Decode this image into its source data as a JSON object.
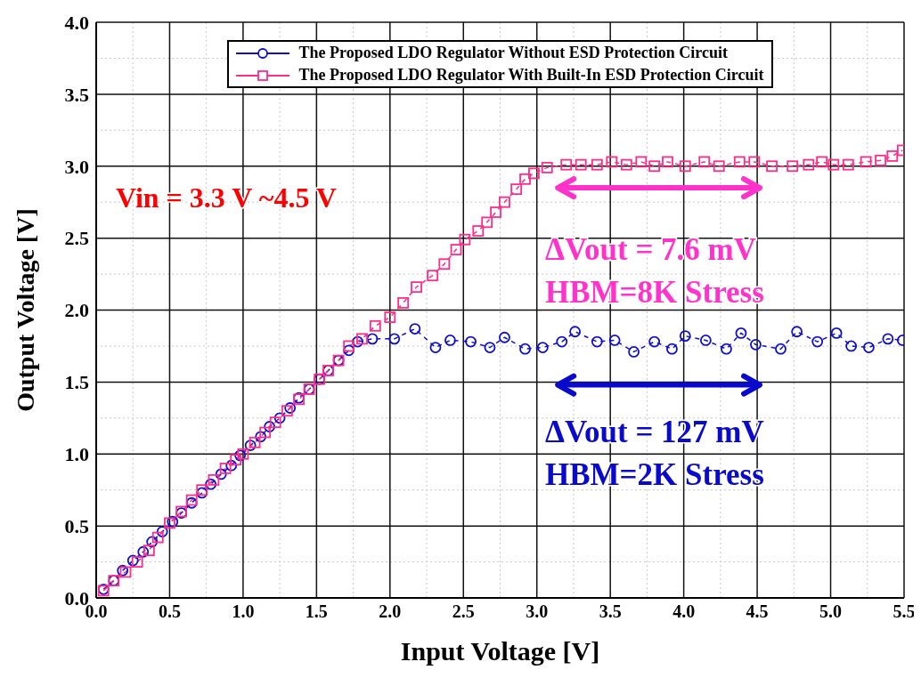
{
  "chart_data": {
    "type": "line",
    "xlabel": "Input Voltage [V]",
    "ylabel": "Output Voltage [V]",
    "xlim": [
      0,
      5.5
    ],
    "ylim": [
      0,
      4
    ],
    "xticks": [
      {
        "value": 0,
        "label": "0.0"
      },
      {
        "value": 0.5,
        "label": "0.5"
      },
      {
        "value": 1,
        "label": "1.0"
      },
      {
        "value": 1.5,
        "label": "1.5"
      },
      {
        "value": 2,
        "label": "2.0"
      },
      {
        "value": 2.5,
        "label": "2.5"
      },
      {
        "value": 3,
        "label": "3.0"
      },
      {
        "value": 3.5,
        "label": "3.5"
      },
      {
        "value": 4,
        "label": "4.0"
      },
      {
        "value": 4.5,
        "label": "4.5"
      },
      {
        "value": 5,
        "label": "5.0"
      },
      {
        "value": 5.5,
        "label": "5.5"
      }
    ],
    "yticks": [
      {
        "value": 0,
        "label": "0.0"
      },
      {
        "value": 0.5,
        "label": "0.5"
      },
      {
        "value": 1,
        "label": "1.0"
      },
      {
        "value": 1.5,
        "label": "1.5"
      },
      {
        "value": 2,
        "label": "2.0"
      },
      {
        "value": 2.5,
        "label": "2.5"
      },
      {
        "value": 3,
        "label": "3.0"
      },
      {
        "value": 3.5,
        "label": "3.5"
      },
      {
        "value": 4,
        "label": "4.0"
      }
    ],
    "grid": true,
    "legend": "top",
    "line_style": "dashed",
    "annotations": [
      "Vin = 3.3 V ~4.5 V",
      "ΔVout = 7.6 mV",
      "HBM=8K Stress",
      "ΔVout = 127 mV",
      "HBM=2K Stress"
    ],
    "series": [
      {
        "name": "The Proposed LDO Regulator Without ESD Protection Circuit",
        "color": "#1010cc",
        "marker": "circle",
        "x": [
          0.05,
          0.12,
          0.18,
          0.25,
          0.32,
          0.38,
          0.45,
          0.52,
          0.58,
          0.65,
          0.72,
          0.78,
          0.85,
          0.92,
          0.98,
          1.05,
          1.12,
          1.18,
          1.25,
          1.32,
          1.38,
          1.45,
          1.52,
          1.58,
          1.65,
          1.72,
          1.78,
          1.88,
          2.03,
          2.17,
          2.31,
          2.41,
          2.55,
          2.68,
          2.78,
          2.92,
          3.04,
          3.17,
          3.26,
          3.41,
          3.53,
          3.66,
          3.8,
          3.92,
          4.01,
          4.15,
          4.29,
          4.39,
          4.49,
          4.66,
          4.77,
          4.91,
          5.04,
          5.14,
          5.26,
          5.39,
          5.49
        ],
        "values": [
          0.06,
          0.12,
          0.19,
          0.26,
          0.32,
          0.39,
          0.46,
          0.53,
          0.59,
          0.66,
          0.73,
          0.79,
          0.86,
          0.92,
          0.99,
          1.06,
          1.12,
          1.19,
          1.25,
          1.32,
          1.39,
          1.45,
          1.52,
          1.58,
          1.65,
          1.72,
          1.78,
          1.8,
          1.8,
          1.87,
          1.74,
          1.79,
          1.78,
          1.74,
          1.81,
          1.73,
          1.74,
          1.78,
          1.85,
          1.78,
          1.79,
          1.71,
          1.78,
          1.73,
          1.82,
          1.79,
          1.73,
          1.84,
          1.76,
          1.73,
          1.85,
          1.78,
          1.84,
          1.75,
          1.74,
          1.8,
          1.79
        ]
      },
      {
        "name": "The Proposed LDO Regulator With Built-In ESD Protection Circuit",
        "color": "#ff2d8a",
        "marker": "square",
        "x": [
          0.05,
          0.12,
          0.2,
          0.28,
          0.36,
          0.42,
          0.5,
          0.58,
          0.65,
          0.72,
          0.8,
          0.88,
          0.95,
          1.0,
          1.08,
          1.15,
          1.22,
          1.3,
          1.38,
          1.45,
          1.52,
          1.58,
          1.65,
          1.72,
          1.81,
          1.9,
          2.0,
          2.09,
          2.18,
          2.29,
          2.37,
          2.45,
          2.51,
          2.6,
          2.66,
          2.72,
          2.78,
          2.86,
          2.92,
          2.98,
          3.07,
          3.2,
          3.3,
          3.41,
          3.51,
          3.61,
          3.71,
          3.8,
          3.89,
          4.01,
          4.14,
          4.24,
          4.38,
          4.48,
          4.6,
          4.74,
          4.85,
          4.94,
          5.02,
          5.12,
          5.24,
          5.34,
          5.42,
          5.49
        ],
        "values": [
          0.05,
          0.12,
          0.18,
          0.25,
          0.33,
          0.42,
          0.52,
          0.6,
          0.68,
          0.75,
          0.82,
          0.9,
          0.96,
          1.0,
          1.08,
          1.15,
          1.22,
          1.3,
          1.38,
          1.45,
          1.52,
          1.58,
          1.65,
          1.75,
          1.8,
          1.89,
          1.95,
          2.05,
          2.16,
          2.24,
          2.32,
          2.42,
          2.49,
          2.55,
          2.61,
          2.68,
          2.75,
          2.84,
          2.91,
          2.95,
          2.99,
          3.01,
          3.01,
          3.01,
          3.03,
          3.01,
          3.03,
          3.0,
          3.03,
          3.0,
          3.03,
          3.0,
          3.03,
          3.03,
          3.0,
          3.0,
          3.01,
          3.03,
          3.01,
          3.01,
          3.03,
          3.04,
          3.07,
          3.11
        ]
      }
    ]
  }
}
